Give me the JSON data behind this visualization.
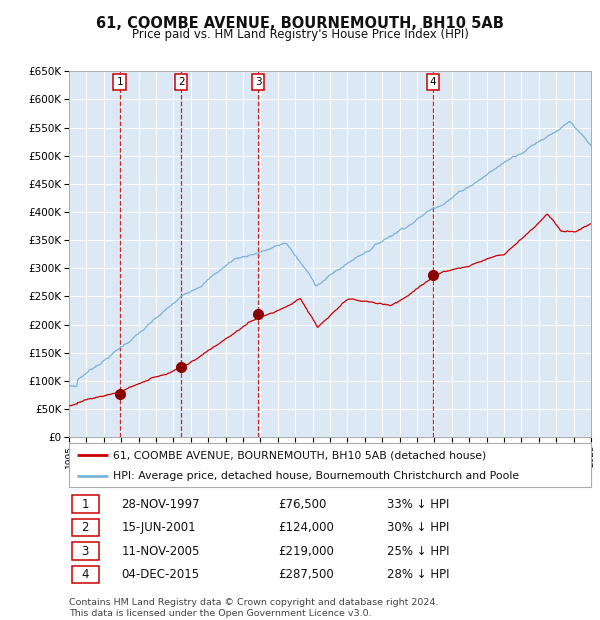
{
  "title": "61, COOMBE AVENUE, BOURNEMOUTH, BH10 5AB",
  "subtitle": "Price paid vs. HM Land Registry's House Price Index (HPI)",
  "background_color": "#dce9f5",
  "plot_bg_color": "#dce9f5",
  "grid_color": "#ffffff",
  "hpi_color": "#7ab3d9",
  "price_color": "#cc0000",
  "marker_color": "#8b0000",
  "vline_color": "#cc0000",
  "ylim": [
    0,
    650000
  ],
  "yticks": [
    0,
    50000,
    100000,
    150000,
    200000,
    250000,
    300000,
    350000,
    400000,
    450000,
    500000,
    550000,
    600000,
    650000
  ],
  "ytick_labels": [
    "£0",
    "£50K",
    "£100K",
    "£150K",
    "£200K",
    "£250K",
    "£300K",
    "£350K",
    "£400K",
    "£450K",
    "£500K",
    "£550K",
    "£600K",
    "£650K"
  ],
  "year_start": 1995,
  "year_end": 2025,
  "sales": [
    {
      "num": 1,
      "date": "28-NOV-1997",
      "year": 1997.91,
      "price": 76500,
      "pct": "33%",
      "dir": "↓"
    },
    {
      "num": 2,
      "date": "15-JUN-2001",
      "year": 2001.45,
      "price": 124000,
      "pct": "30%",
      "dir": "↓"
    },
    {
      "num": 3,
      "date": "11-NOV-2005",
      "year": 2005.87,
      "price": 219000,
      "pct": "25%",
      "dir": "↓"
    },
    {
      "num": 4,
      "date": "04-DEC-2015",
      "year": 2015.93,
      "price": 287500,
      "pct": "28%",
      "dir": "↓"
    }
  ],
  "legend_line1": "61, COOMBE AVENUE, BOURNEMOUTH, BH10 5AB (detached house)",
  "legend_line2": "HPI: Average price, detached house, Bournemouth Christchurch and Poole",
  "footer1": "Contains HM Land Registry data © Crown copyright and database right 2024.",
  "footer2": "This data is licensed under the Open Government Licence v3.0."
}
